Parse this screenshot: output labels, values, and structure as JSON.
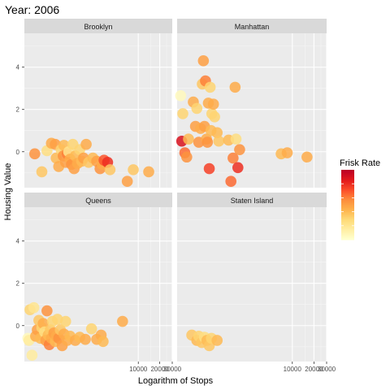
{
  "chart_data": {
    "type": "scatter",
    "title": "Year: 2006",
    "xlabel": "Logarithm of Stops",
    "ylabel": "Housing Value",
    "x_scale": "log",
    "x_ticks": [
      10000,
      20000,
      30000
    ],
    "x_tick_labels": [
      "10000",
      "20000",
      "30000"
    ],
    "y_ticks": [
      0,
      2,
      4
    ],
    "y_tick_labels": [
      "0",
      "2",
      "4"
    ],
    "xlim": [
      250,
      30000
    ],
    "ylim": [
      -1.7,
      5.6
    ],
    "grid": true,
    "legend": {
      "title": "Frisk Rate",
      "position": "right",
      "colors": [
        "#ffffcc",
        "#ffeda0",
        "#fed976",
        "#feb24c",
        "#fd8d3c",
        "#fc4e2a",
        "#e31a1c",
        "#bd0026"
      ]
    },
    "point_color_scale": [
      "#ffffcc",
      "#ffeda0",
      "#fed976",
      "#feb24c",
      "#fd8d3c",
      "#fc4e2a",
      "#e31a1c",
      "#bd0026"
    ],
    "panels": [
      {
        "name": "Brooklyn",
        "points": [
          {
            "x": 350,
            "y": -0.1,
            "c": 0.55
          },
          {
            "x": 440,
            "y": -0.95,
            "c": 0.35
          },
          {
            "x": 520,
            "y": 0.05,
            "c": 0.25
          },
          {
            "x": 600,
            "y": 0.4,
            "c": 0.45
          },
          {
            "x": 680,
            "y": 0.35,
            "c": 0.5
          },
          {
            "x": 700,
            "y": -0.3,
            "c": 0.4
          },
          {
            "x": 760,
            "y": -0.7,
            "c": 0.45
          },
          {
            "x": 820,
            "y": 0.1,
            "c": 0.3
          },
          {
            "x": 880,
            "y": -0.2,
            "c": 0.55
          },
          {
            "x": 900,
            "y": 0.3,
            "c": 0.4
          },
          {
            "x": 950,
            "y": -0.5,
            "c": 0.5
          },
          {
            "x": 1000,
            "y": -0.1,
            "c": 0.6
          },
          {
            "x": 1050,
            "y": 0.0,
            "c": 0.2
          },
          {
            "x": 1100,
            "y": -0.35,
            "c": 0.45
          },
          {
            "x": 1150,
            "y": -0.6,
            "c": 0.55
          },
          {
            "x": 1200,
            "y": 0.35,
            "c": 0.3
          },
          {
            "x": 1250,
            "y": -0.8,
            "c": 0.5
          },
          {
            "x": 1300,
            "y": -0.2,
            "c": 0.4
          },
          {
            "x": 1400,
            "y": -0.55,
            "c": 0.45
          },
          {
            "x": 1500,
            "y": 0.1,
            "c": 0.3
          },
          {
            "x": 1600,
            "y": -0.45,
            "c": 0.4
          },
          {
            "x": 1700,
            "y": -0.3,
            "c": 0.5
          },
          {
            "x": 1850,
            "y": 0.35,
            "c": 0.45
          },
          {
            "x": 2000,
            "y": -0.5,
            "c": 0.35
          },
          {
            "x": 2300,
            "y": -0.3,
            "c": 0.4
          },
          {
            "x": 2600,
            "y": -0.45,
            "c": 0.5
          },
          {
            "x": 2900,
            "y": -0.8,
            "c": 0.55
          },
          {
            "x": 3100,
            "y": -0.6,
            "c": 0.45
          },
          {
            "x": 3300,
            "y": -0.4,
            "c": 0.7
          },
          {
            "x": 3700,
            "y": -0.5,
            "c": 0.8
          },
          {
            "x": 4000,
            "y": -0.85,
            "c": 0.35
          },
          {
            "x": 7000,
            "y": -1.4,
            "c": 0.5
          },
          {
            "x": 8500,
            "y": -0.85,
            "c": 0.35
          },
          {
            "x": 14000,
            "y": -0.95,
            "c": 0.45
          }
        ]
      },
      {
        "name": "Manhattan",
        "points": [
          {
            "x": 280,
            "y": 2.65,
            "c": 0.05
          },
          {
            "x": 290,
            "y": 0.5,
            "c": 0.9
          },
          {
            "x": 300,
            "y": 1.8,
            "c": 0.3
          },
          {
            "x": 320,
            "y": -0.05,
            "c": 0.65
          },
          {
            "x": 340,
            "y": -0.25,
            "c": 0.55
          },
          {
            "x": 360,
            "y": 0.6,
            "c": 0.4
          },
          {
            "x": 420,
            "y": 2.35,
            "c": 0.45
          },
          {
            "x": 450,
            "y": 1.2,
            "c": 0.5
          },
          {
            "x": 470,
            "y": 2.05,
            "c": 0.3
          },
          {
            "x": 500,
            "y": 0.45,
            "c": 0.55
          },
          {
            "x": 530,
            "y": 1.1,
            "c": 0.45
          },
          {
            "x": 560,
            "y": 3.2,
            "c": 0.35
          },
          {
            "x": 580,
            "y": 4.3,
            "c": 0.5
          },
          {
            "x": 600,
            "y": 1.2,
            "c": 0.5
          },
          {
            "x": 620,
            "y": 3.35,
            "c": 0.6
          },
          {
            "x": 640,
            "y": 0.6,
            "c": 0.45
          },
          {
            "x": 660,
            "y": 0.45,
            "c": 0.55
          },
          {
            "x": 680,
            "y": 2.3,
            "c": 0.45
          },
          {
            "x": 700,
            "y": -0.8,
            "c": 0.75
          },
          {
            "x": 720,
            "y": 3.05,
            "c": 0.3
          },
          {
            "x": 740,
            "y": 1.0,
            "c": 0.4
          },
          {
            "x": 760,
            "y": 1.8,
            "c": 0.3
          },
          {
            "x": 800,
            "y": 2.25,
            "c": 0.45
          },
          {
            "x": 830,
            "y": 1.65,
            "c": 0.3
          },
          {
            "x": 900,
            "y": 0.9,
            "c": 0.4
          },
          {
            "x": 950,
            "y": 0.5,
            "c": 0.35
          },
          {
            "x": 1300,
            "y": 0.55,
            "c": 0.4
          },
          {
            "x": 1400,
            "y": -1.4,
            "c": 0.65
          },
          {
            "x": 1500,
            "y": -0.3,
            "c": 0.6
          },
          {
            "x": 1600,
            "y": 3.05,
            "c": 0.45
          },
          {
            "x": 1650,
            "y": 0.6,
            "c": 0.25
          },
          {
            "x": 1750,
            "y": -0.75,
            "c": 0.8
          },
          {
            "x": 1850,
            "y": 0.1,
            "c": 0.55
          },
          {
            "x": 7000,
            "y": -0.1,
            "c": 0.4
          },
          {
            "x": 8500,
            "y": -0.05,
            "c": 0.45
          },
          {
            "x": 16000,
            "y": -0.25,
            "c": 0.45
          }
        ]
      },
      {
        "name": "Queens",
        "points": [
          {
            "x": 280,
            "y": -0.6,
            "c": 0.05
          },
          {
            "x": 290,
            "y": -0.7,
            "c": 0.15
          },
          {
            "x": 300,
            "y": 0.75,
            "c": 0.3
          },
          {
            "x": 320,
            "y": -1.4,
            "c": 0.15
          },
          {
            "x": 340,
            "y": 0.85,
            "c": 0.2
          },
          {
            "x": 360,
            "y": -0.5,
            "c": 0.45
          },
          {
            "x": 380,
            "y": -0.2,
            "c": 0.5
          },
          {
            "x": 400,
            "y": 0.25,
            "c": 0.35
          },
          {
            "x": 420,
            "y": -0.6,
            "c": 0.4
          },
          {
            "x": 440,
            "y": -0.1,
            "c": 0.3
          },
          {
            "x": 460,
            "y": 0.1,
            "c": 0.45
          },
          {
            "x": 480,
            "y": -0.3,
            "c": 0.25
          },
          {
            "x": 500,
            "y": -0.7,
            "c": 0.5
          },
          {
            "x": 520,
            "y": 0.7,
            "c": 0.55
          },
          {
            "x": 540,
            "y": -0.45,
            "c": 0.4
          },
          {
            "x": 560,
            "y": -0.9,
            "c": 0.6
          },
          {
            "x": 580,
            "y": -0.2,
            "c": 0.35
          },
          {
            "x": 600,
            "y": -0.6,
            "c": 0.45
          },
          {
            "x": 620,
            "y": 0.2,
            "c": 0.3
          },
          {
            "x": 650,
            "y": -0.35,
            "c": 0.5
          },
          {
            "x": 680,
            "y": -0.75,
            "c": 0.4
          },
          {
            "x": 700,
            "y": -0.5,
            "c": 0.45
          },
          {
            "x": 730,
            "y": 0.3,
            "c": 0.3
          },
          {
            "x": 760,
            "y": -0.6,
            "c": 0.55
          },
          {
            "x": 800,
            "y": -0.2,
            "c": 0.35
          },
          {
            "x": 850,
            "y": -0.95,
            "c": 0.5
          },
          {
            "x": 900,
            "y": -0.4,
            "c": 0.45
          },
          {
            "x": 950,
            "y": 0.2,
            "c": 0.3
          },
          {
            "x": 1000,
            "y": -0.7,
            "c": 0.45
          },
          {
            "x": 1100,
            "y": -0.5,
            "c": 0.4
          },
          {
            "x": 1300,
            "y": -0.7,
            "c": 0.45
          },
          {
            "x": 1500,
            "y": -0.55,
            "c": 0.4
          },
          {
            "x": 1800,
            "y": -0.65,
            "c": 0.45
          },
          {
            "x": 2200,
            "y": -0.15,
            "c": 0.3
          },
          {
            "x": 2600,
            "y": -0.65,
            "c": 0.45
          },
          {
            "x": 3000,
            "y": -0.45,
            "c": 0.45
          },
          {
            "x": 3200,
            "y": -0.75,
            "c": 0.4
          },
          {
            "x": 6000,
            "y": 0.2,
            "c": 0.45
          }
        ]
      },
      {
        "name": "Staten Island",
        "points": [
          {
            "x": 400,
            "y": -0.45,
            "c": 0.35
          },
          {
            "x": 470,
            "y": -0.7,
            "c": 0.4
          },
          {
            "x": 500,
            "y": -0.5,
            "c": 0.3
          },
          {
            "x": 550,
            "y": -0.8,
            "c": 0.35
          },
          {
            "x": 600,
            "y": -0.55,
            "c": 0.25
          },
          {
            "x": 650,
            "y": -0.7,
            "c": 0.4
          },
          {
            "x": 700,
            "y": -0.95,
            "c": 0.35
          },
          {
            "x": 750,
            "y": -0.6,
            "c": 0.3
          },
          {
            "x": 900,
            "y": -0.7,
            "c": 0.4
          }
        ]
      }
    ]
  }
}
